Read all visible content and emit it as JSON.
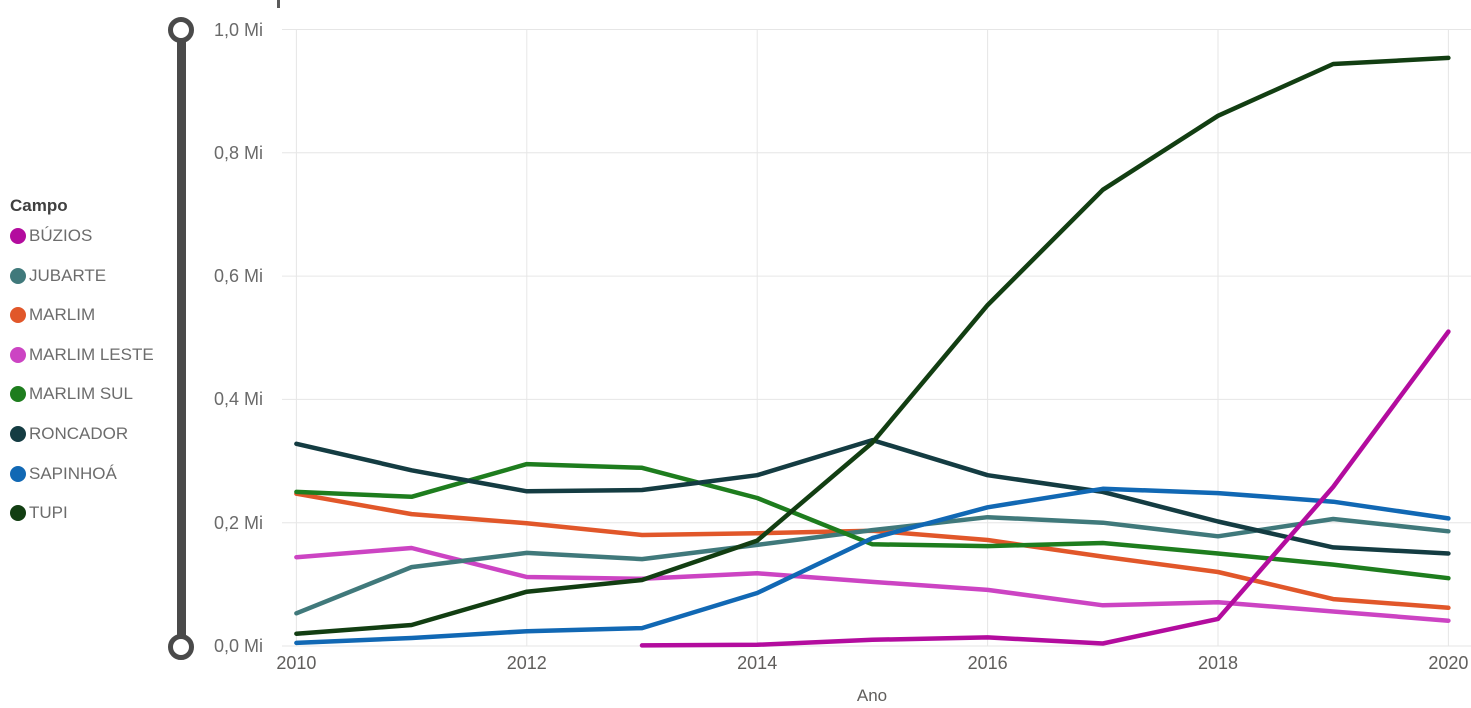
{
  "visual": {
    "legend_title": "Campo",
    "x_axis_title": "Ano"
  },
  "chart_data": {
    "type": "line",
    "title": "",
    "xlabel": "Ano",
    "ylabel": "",
    "y_unit": "Mi",
    "ylim": [
      0.0,
      1.0
    ],
    "grid": true,
    "legend_title": "Campo",
    "legend_position": "left",
    "x": [
      2010,
      2011,
      2012,
      2013,
      2014,
      2015,
      2016,
      2017,
      2018,
      2019,
      2020
    ],
    "x_tick_labels": [
      "2010",
      "2012",
      "2014",
      "2016",
      "2018",
      "2020"
    ],
    "x_tick_years": [
      2010,
      2012,
      2014,
      2016,
      2018,
      2020
    ],
    "y_tick_labels": [
      "0,0 Mi",
      "0,2 Mi",
      "0,4 Mi",
      "0,6 Mi",
      "0,8 Mi",
      "1,0 Mi"
    ],
    "y_tick_values": [
      0.0,
      0.2,
      0.4,
      0.6,
      0.8,
      1.0
    ],
    "series": [
      {
        "name": "BÚZIOS",
        "color": "#b30c9e",
        "values": [
          null,
          null,
          null,
          0.001,
          0.002,
          0.01,
          0.014,
          0.004,
          0.044,
          0.258,
          0.51
        ]
      },
      {
        "name": "JUBARTE",
        "color": "#40797b",
        "values": [
          0.053,
          0.128,
          0.151,
          0.141,
          0.164,
          0.188,
          0.209,
          0.2,
          0.178,
          0.206,
          0.186
        ]
      },
      {
        "name": "MARLIM",
        "color": "#e1572a",
        "values": [
          0.247,
          0.214,
          0.199,
          0.18,
          0.183,
          0.187,
          0.172,
          0.145,
          0.12,
          0.076,
          0.062
        ]
      },
      {
        "name": "MARLIM LESTE",
        "color": "#cc44c3",
        "values": [
          0.144,
          0.159,
          0.112,
          0.109,
          0.118,
          0.104,
          0.091,
          0.066,
          0.071,
          0.056,
          0.041
        ]
      },
      {
        "name": "MARLIM SUL",
        "color": "#1e7d1e",
        "values": [
          0.25,
          0.242,
          0.295,
          0.289,
          0.24,
          0.165,
          0.162,
          0.167,
          0.15,
          0.132,
          0.11
        ]
      },
      {
        "name": "RONCADOR",
        "color": "#143c42",
        "values": [
          0.328,
          0.285,
          0.251,
          0.253,
          0.277,
          0.334,
          0.277,
          0.25,
          0.202,
          0.16,
          0.15
        ]
      },
      {
        "name": "SAPINHOÁ",
        "color": "#1168b4",
        "values": [
          0.005,
          0.013,
          0.024,
          0.029,
          0.086,
          0.175,
          0.225,
          0.255,
          0.248,
          0.234,
          0.207
        ]
      },
      {
        "name": "TUPI",
        "color": "#123e12",
        "values": [
          0.02,
          0.034,
          0.088,
          0.107,
          0.171,
          0.33,
          0.553,
          0.74,
          0.86,
          0.944,
          0.954
        ]
      }
    ]
  }
}
